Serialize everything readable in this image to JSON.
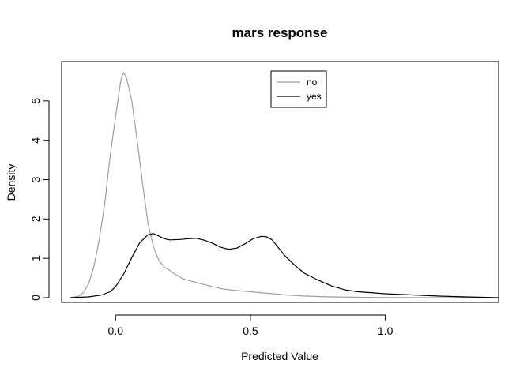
{
  "chart_data": {
    "type": "line",
    "title": "mars response",
    "xlabel": "Predicted Value",
    "ylabel": "Density",
    "xlim": [
      -0.2,
      1.42
    ],
    "ylim": [
      -0.12,
      6.0
    ],
    "x_ticks": [
      0.0,
      0.5,
      1.0
    ],
    "x_tick_labels": [
      "0.0",
      "0.5",
      "1.0"
    ],
    "y_ticks": [
      0,
      1,
      2,
      3,
      4,
      5
    ],
    "y_tick_labels": [
      "0",
      "1",
      "2",
      "3",
      "4",
      "5"
    ],
    "grid": false,
    "legend_placement": "top-center",
    "series": [
      {
        "name": "no",
        "color": "#9e9e9e",
        "x": [
          -0.17,
          -0.14,
          -0.12,
          -0.1,
          -0.08,
          -0.06,
          -0.04,
          -0.02,
          0.0,
          0.02,
          0.03,
          0.04,
          0.06,
          0.08,
          0.1,
          0.12,
          0.14,
          0.16,
          0.18,
          0.2,
          0.22,
          0.25,
          0.28,
          0.32,
          0.36,
          0.4,
          0.45,
          0.5,
          0.55,
          0.6,
          0.65,
          0.7,
          0.75,
          0.8,
          0.9,
          1.0,
          1.2,
          1.4
        ],
        "y": [
          0.0,
          0.03,
          0.12,
          0.35,
          0.8,
          1.5,
          2.4,
          3.6,
          4.6,
          5.55,
          5.72,
          5.6,
          5.0,
          4.0,
          2.9,
          1.9,
          1.3,
          0.95,
          0.78,
          0.7,
          0.6,
          0.48,
          0.42,
          0.35,
          0.28,
          0.22,
          0.18,
          0.15,
          0.12,
          0.09,
          0.06,
          0.04,
          0.03,
          0.02,
          0.01,
          0.005,
          0.0,
          0.0
        ]
      },
      {
        "name": "yes",
        "color": "#000000",
        "x": [
          -0.17,
          -0.1,
          -0.05,
          -0.02,
          0.0,
          0.03,
          0.06,
          0.09,
          0.12,
          0.14,
          0.16,
          0.18,
          0.2,
          0.24,
          0.27,
          0.3,
          0.33,
          0.36,
          0.39,
          0.42,
          0.45,
          0.48,
          0.51,
          0.54,
          0.56,
          0.58,
          0.6,
          0.63,
          0.66,
          0.7,
          0.75,
          0.8,
          0.85,
          0.9,
          1.0,
          1.1,
          1.2,
          1.3,
          1.42
        ],
        "y": [
          0.0,
          0.02,
          0.07,
          0.15,
          0.28,
          0.6,
          1.02,
          1.4,
          1.6,
          1.63,
          1.57,
          1.5,
          1.47,
          1.48,
          1.5,
          1.51,
          1.46,
          1.38,
          1.28,
          1.23,
          1.26,
          1.37,
          1.5,
          1.56,
          1.55,
          1.47,
          1.3,
          1.05,
          0.85,
          0.62,
          0.45,
          0.3,
          0.2,
          0.15,
          0.1,
          0.07,
          0.04,
          0.02,
          0.0
        ]
      }
    ]
  }
}
